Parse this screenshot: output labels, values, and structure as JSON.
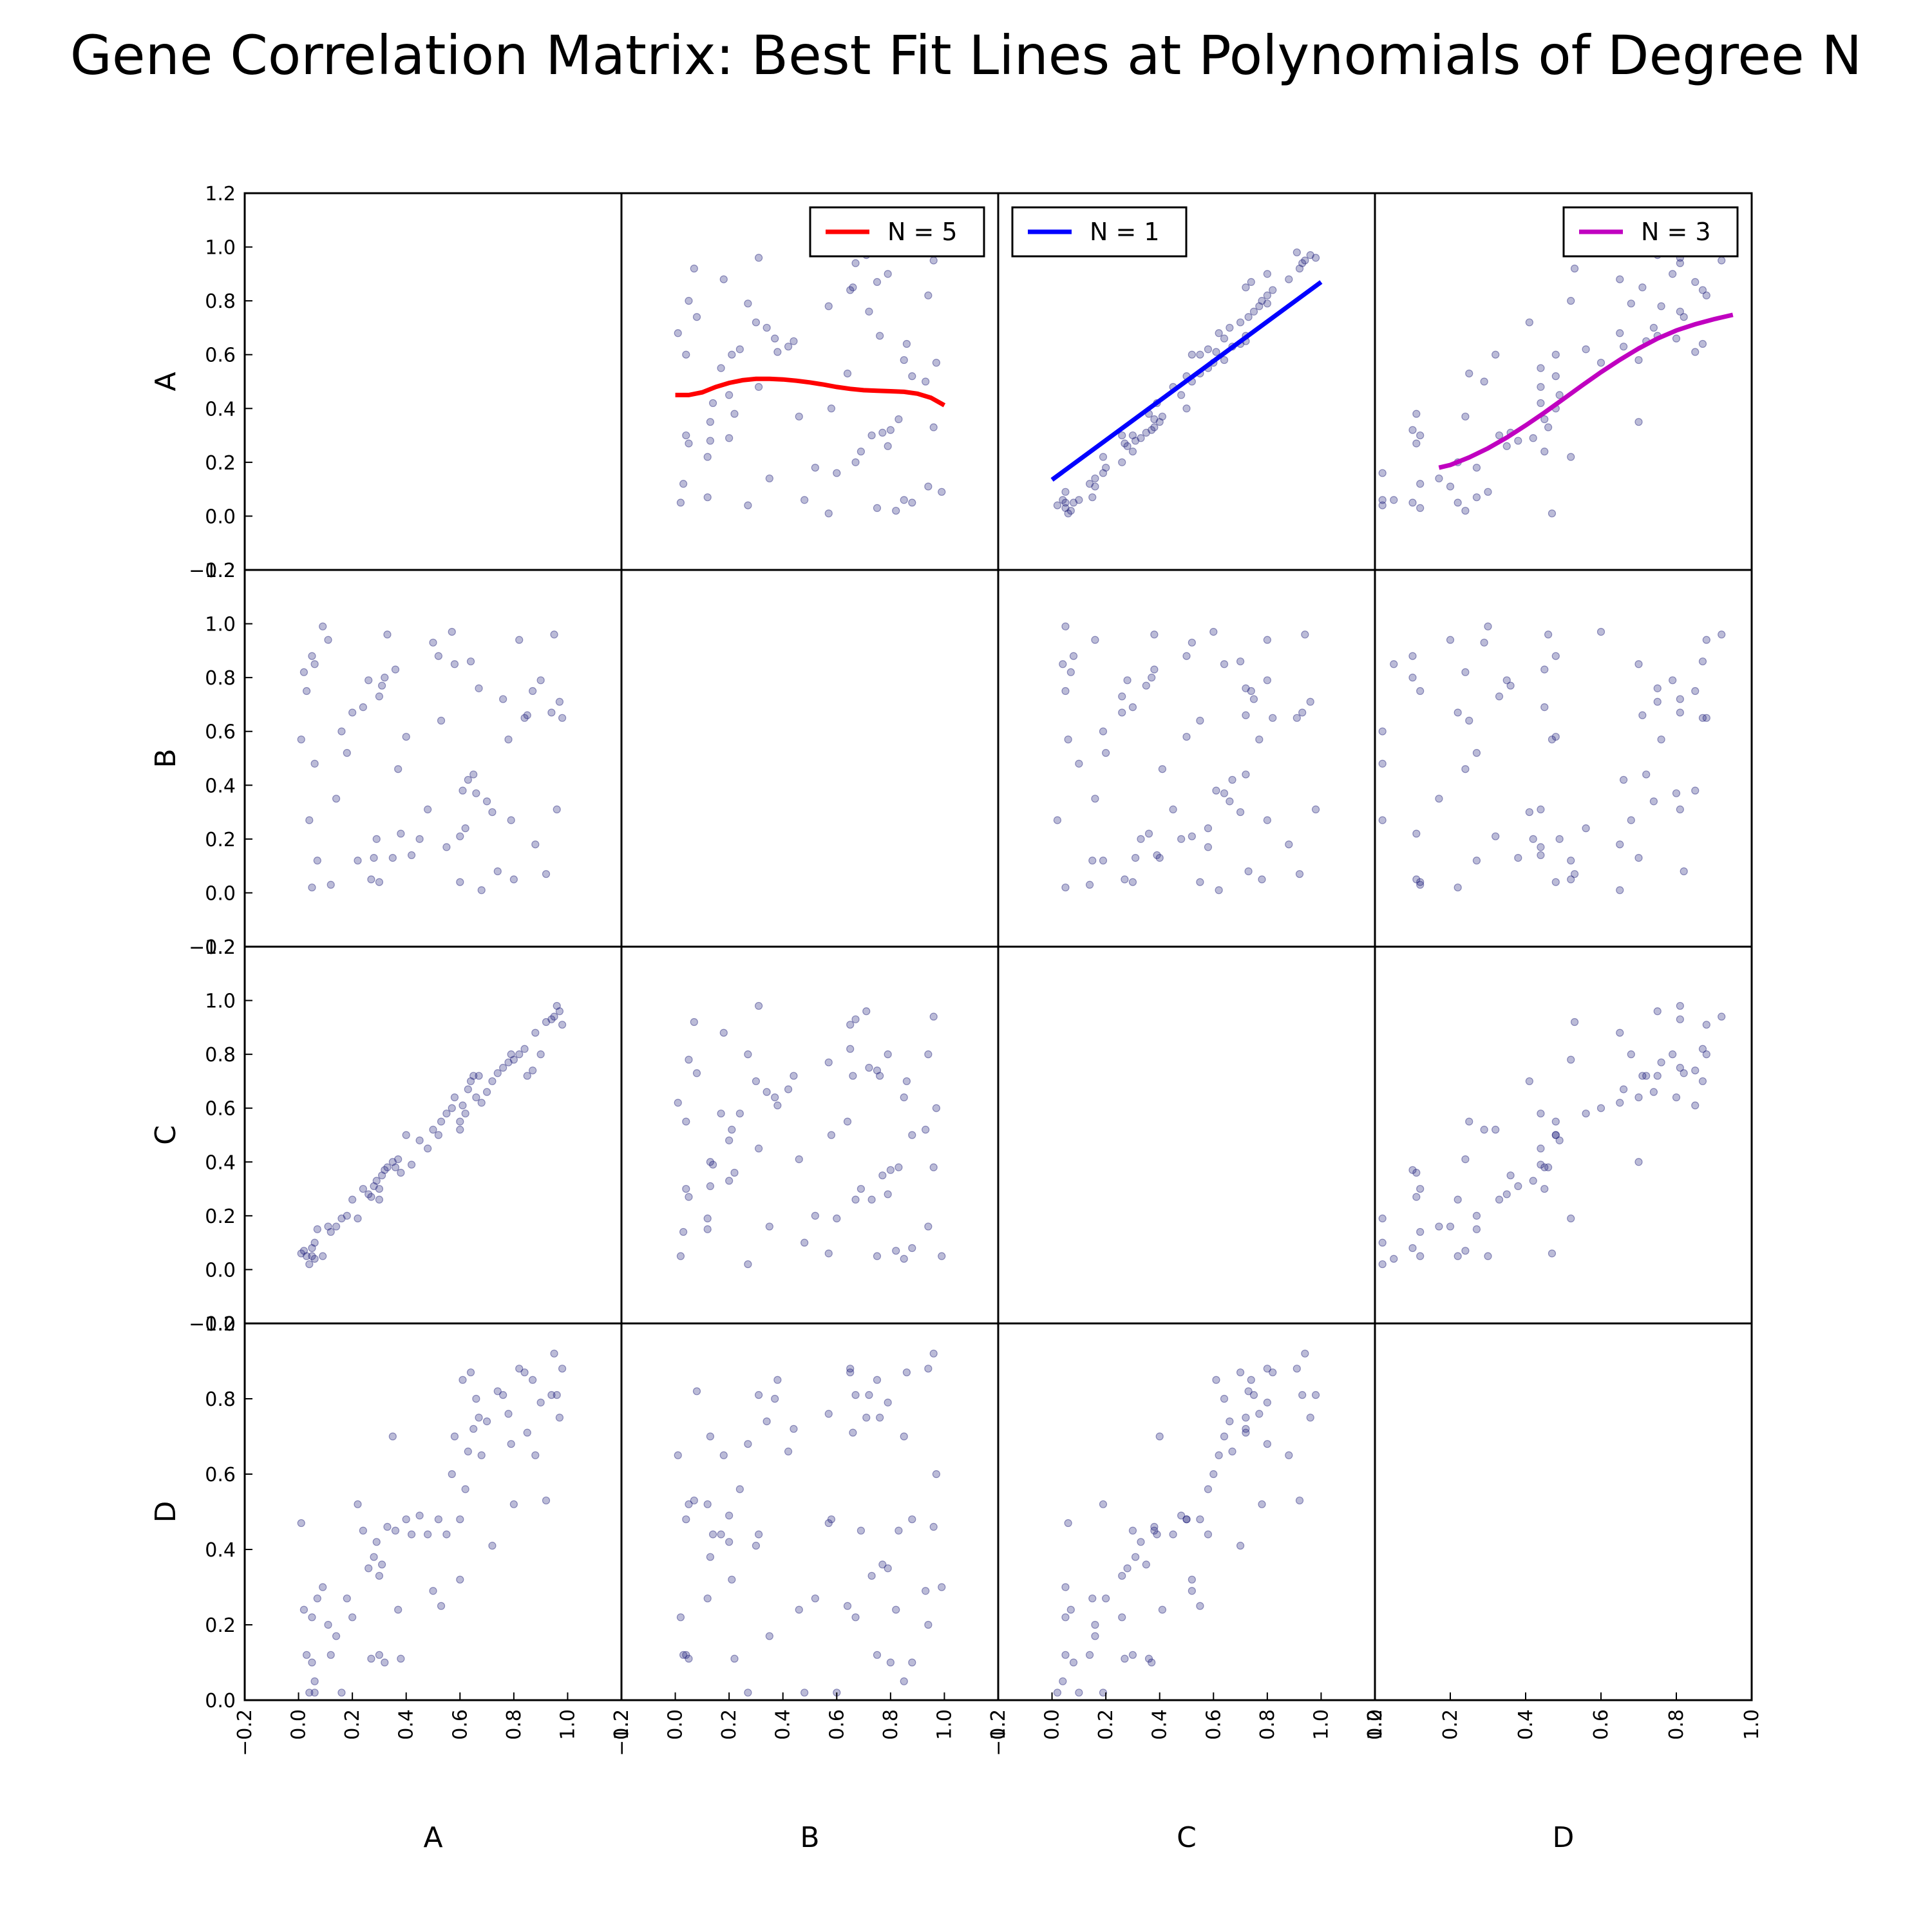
{
  "chart_data": {
    "type": "scatter",
    "title": "Gene Correlation Matrix: Best Fit Lines at Polynomials of Degree N",
    "variables": [
      "A",
      "B",
      "C",
      "D"
    ],
    "grid": false,
    "point_color": "#1f1f7a",
    "axes": {
      "A": {
        "lim": [
          -0.2,
          1.2
        ],
        "ticks": [
          "−0.2",
          "0.0",
          "0.2",
          "0.4",
          "0.6",
          "0.8",
          "1.0",
          "1.2"
        ]
      },
      "B": {
        "lim": [
          -0.2,
          1.2
        ],
        "ticks": [
          "−0.2",
          "0.0",
          "0.2",
          "0.4",
          "0.6",
          "0.8",
          "1.0",
          "1.2"
        ]
      },
      "C": {
        "lim": [
          -0.2,
          1.2
        ],
        "ticks": [
          "−0.2",
          "0.0",
          "0.2",
          "0.4",
          "0.6",
          "0.8",
          "1.0",
          "1.2"
        ]
      },
      "D": {
        "lim": [
          0.0,
          1.0
        ],
        "ticks": [
          "0.0",
          "0.2",
          "0.4",
          "0.6",
          "0.8",
          "1.0"
        ]
      }
    },
    "data": {
      "A": [
        0.01,
        0.02,
        0.03,
        0.04,
        0.05,
        0.05,
        0.06,
        0.06,
        0.07,
        0.09,
        0.11,
        0.12,
        0.14,
        0.16,
        0.18,
        0.2,
        0.22,
        0.24,
        0.26,
        0.27,
        0.28,
        0.29,
        0.3,
        0.3,
        0.31,
        0.32,
        0.33,
        0.35,
        0.36,
        0.37,
        0.38,
        0.4,
        0.42,
        0.45,
        0.48,
        0.5,
        0.52,
        0.53,
        0.55,
        0.57,
        0.58,
        0.6,
        0.6,
        0.61,
        0.62,
        0.63,
        0.64,
        0.65,
        0.66,
        0.67,
        0.68,
        0.7,
        0.72,
        0.74,
        0.76,
        0.78,
        0.79,
        0.8,
        0.82,
        0.84,
        0.85,
        0.87,
        0.88,
        0.9,
        0.92,
        0.94,
        0.95,
        0.96,
        0.97,
        0.98
      ],
      "B": [
        0.57,
        0.82,
        0.75,
        0.27,
        0.02,
        0.88,
        0.85,
        0.48,
        0.12,
        0.99,
        0.94,
        0.03,
        0.35,
        0.6,
        0.52,
        0.67,
        0.12,
        0.69,
        0.79,
        0.05,
        0.13,
        0.2,
        0.73,
        0.04,
        0.77,
        0.8,
        0.96,
        0.13,
        0.83,
        0.46,
        0.22,
        0.58,
        0.14,
        0.2,
        0.31,
        0.93,
        0.88,
        0.64,
        0.17,
        0.97,
        0.85,
        0.04,
        0.21,
        0.38,
        0.24,
        0.42,
        0.86,
        0.44,
        0.37,
        0.76,
        0.01,
        0.34,
        0.3,
        0.08,
        0.72,
        0.57,
        0.27,
        0.05,
        0.94,
        0.65,
        0.66,
        0.75,
        0.18,
        0.79,
        0.07,
        0.67,
        0.96,
        0.31,
        0.71,
        0.65
      ],
      "C": [
        0.06,
        0.07,
        0.05,
        0.02,
        0.05,
        0.08,
        0.04,
        0.1,
        0.15,
        0.05,
        0.16,
        0.14,
        0.16,
        0.19,
        0.2,
        0.26,
        0.19,
        0.3,
        0.28,
        0.27,
        0.31,
        0.33,
        0.26,
        0.3,
        0.35,
        0.37,
        0.38,
        0.4,
        0.38,
        0.41,
        0.36,
        0.5,
        0.39,
        0.48,
        0.45,
        0.52,
        0.5,
        0.55,
        0.58,
        0.6,
        0.64,
        0.55,
        0.52,
        0.61,
        0.58,
        0.67,
        0.7,
        0.72,
        0.64,
        0.72,
        0.62,
        0.66,
        0.7,
        0.73,
        0.75,
        0.77,
        0.8,
        0.78,
        0.8,
        0.82,
        0.72,
        0.74,
        0.88,
        0.8,
        0.92,
        0.93,
        0.94,
        0.98,
        0.96,
        0.91
      ],
      "D": [
        0.47,
        0.24,
        0.12,
        0.02,
        0.22,
        0.1,
        0.05,
        0.02,
        0.27,
        0.3,
        0.2,
        0.12,
        0.17,
        0.02,
        0.27,
        0.22,
        0.52,
        0.45,
        0.35,
        0.11,
        0.38,
        0.42,
        0.33,
        0.12,
        0.36,
        0.1,
        0.46,
        0.7,
        0.45,
        0.24,
        0.11,
        0.48,
        0.44,
        0.49,
        0.44,
        0.29,
        0.48,
        0.25,
        0.44,
        0.6,
        0.7,
        0.48,
        0.32,
        0.85,
        0.56,
        0.66,
        0.87,
        0.72,
        0.8,
        0.75,
        0.65,
        0.74,
        0.41,
        0.82,
        0.81,
        0.76,
        0.68,
        0.52,
        0.88,
        0.87,
        0.71,
        0.85,
        0.65,
        0.79,
        0.53,
        0.81,
        0.92,
        0.81,
        0.75,
        0.88
      ]
    },
    "fits": [
      {
        "x_var": "B",
        "y_var": "A",
        "degree": 5,
        "label": "N = 5",
        "color": "#ff0000",
        "legend": "top-right",
        "curve": [
          [
            0.0,
            0.45
          ],
          [
            0.05,
            0.45
          ],
          [
            0.1,
            0.46
          ],
          [
            0.15,
            0.48
          ],
          [
            0.2,
            0.495
          ],
          [
            0.25,
            0.505
          ],
          [
            0.3,
            0.51
          ],
          [
            0.35,
            0.51
          ],
          [
            0.4,
            0.508
          ],
          [
            0.45,
            0.503
          ],
          [
            0.5,
            0.497
          ],
          [
            0.55,
            0.489
          ],
          [
            0.6,
            0.48
          ],
          [
            0.65,
            0.473
          ],
          [
            0.7,
            0.468
          ],
          [
            0.75,
            0.466
          ],
          [
            0.8,
            0.464
          ],
          [
            0.85,
            0.462
          ],
          [
            0.9,
            0.455
          ],
          [
            0.95,
            0.44
          ],
          [
            1.0,
            0.412
          ]
        ]
      },
      {
        "x_var": "C",
        "y_var": "A",
        "degree": 1,
        "label": "N = 1",
        "color": "#0000ff",
        "legend": "top-left",
        "curve": [
          [
            0.0,
            0.135
          ],
          [
            1.0,
            0.87
          ]
        ]
      },
      {
        "x_var": "D",
        "y_var": "A",
        "degree": 3,
        "label": "N = 3",
        "color": "#c000c0",
        "legend": "top-right",
        "curve": [
          [
            0.17,
            0.18
          ],
          [
            0.2,
            0.19
          ],
          [
            0.25,
            0.218
          ],
          [
            0.3,
            0.252
          ],
          [
            0.35,
            0.292
          ],
          [
            0.4,
            0.337
          ],
          [
            0.45,
            0.385
          ],
          [
            0.5,
            0.435
          ],
          [
            0.55,
            0.486
          ],
          [
            0.6,
            0.535
          ],
          [
            0.65,
            0.581
          ],
          [
            0.7,
            0.623
          ],
          [
            0.75,
            0.66
          ],
          [
            0.8,
            0.69
          ],
          [
            0.85,
            0.713
          ],
          [
            0.9,
            0.732
          ],
          [
            0.95,
            0.748
          ]
        ]
      }
    ]
  }
}
